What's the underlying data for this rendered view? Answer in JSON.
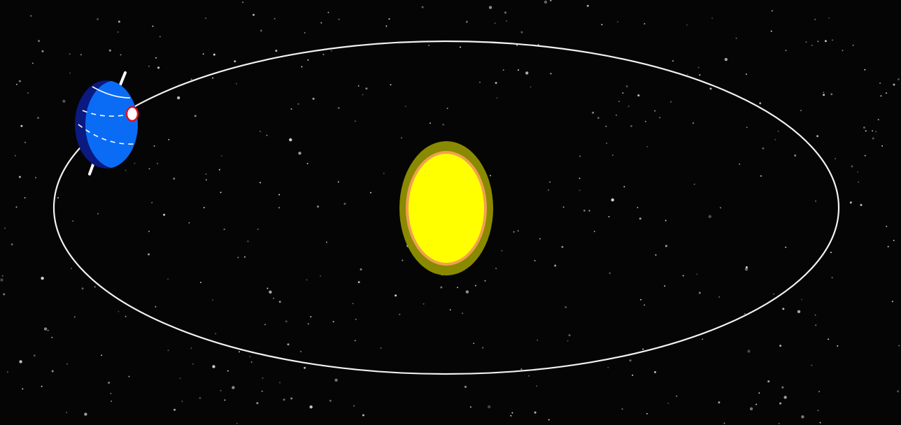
{
  "scene": {
    "background_color": "#050505",
    "star_color": "#ffffff",
    "orbit_color": "#f2f2f2"
  },
  "sun": {
    "core_color": "#ffff00",
    "ring_color": "#f0a050",
    "halo_color": "#8a8a00"
  },
  "earth": {
    "day_color": "#0a6cf5",
    "night_color": "#0a1a80",
    "axis_color": "#ffffff",
    "marker_fill": "#ffffff",
    "marker_stroke": "#e01020"
  }
}
